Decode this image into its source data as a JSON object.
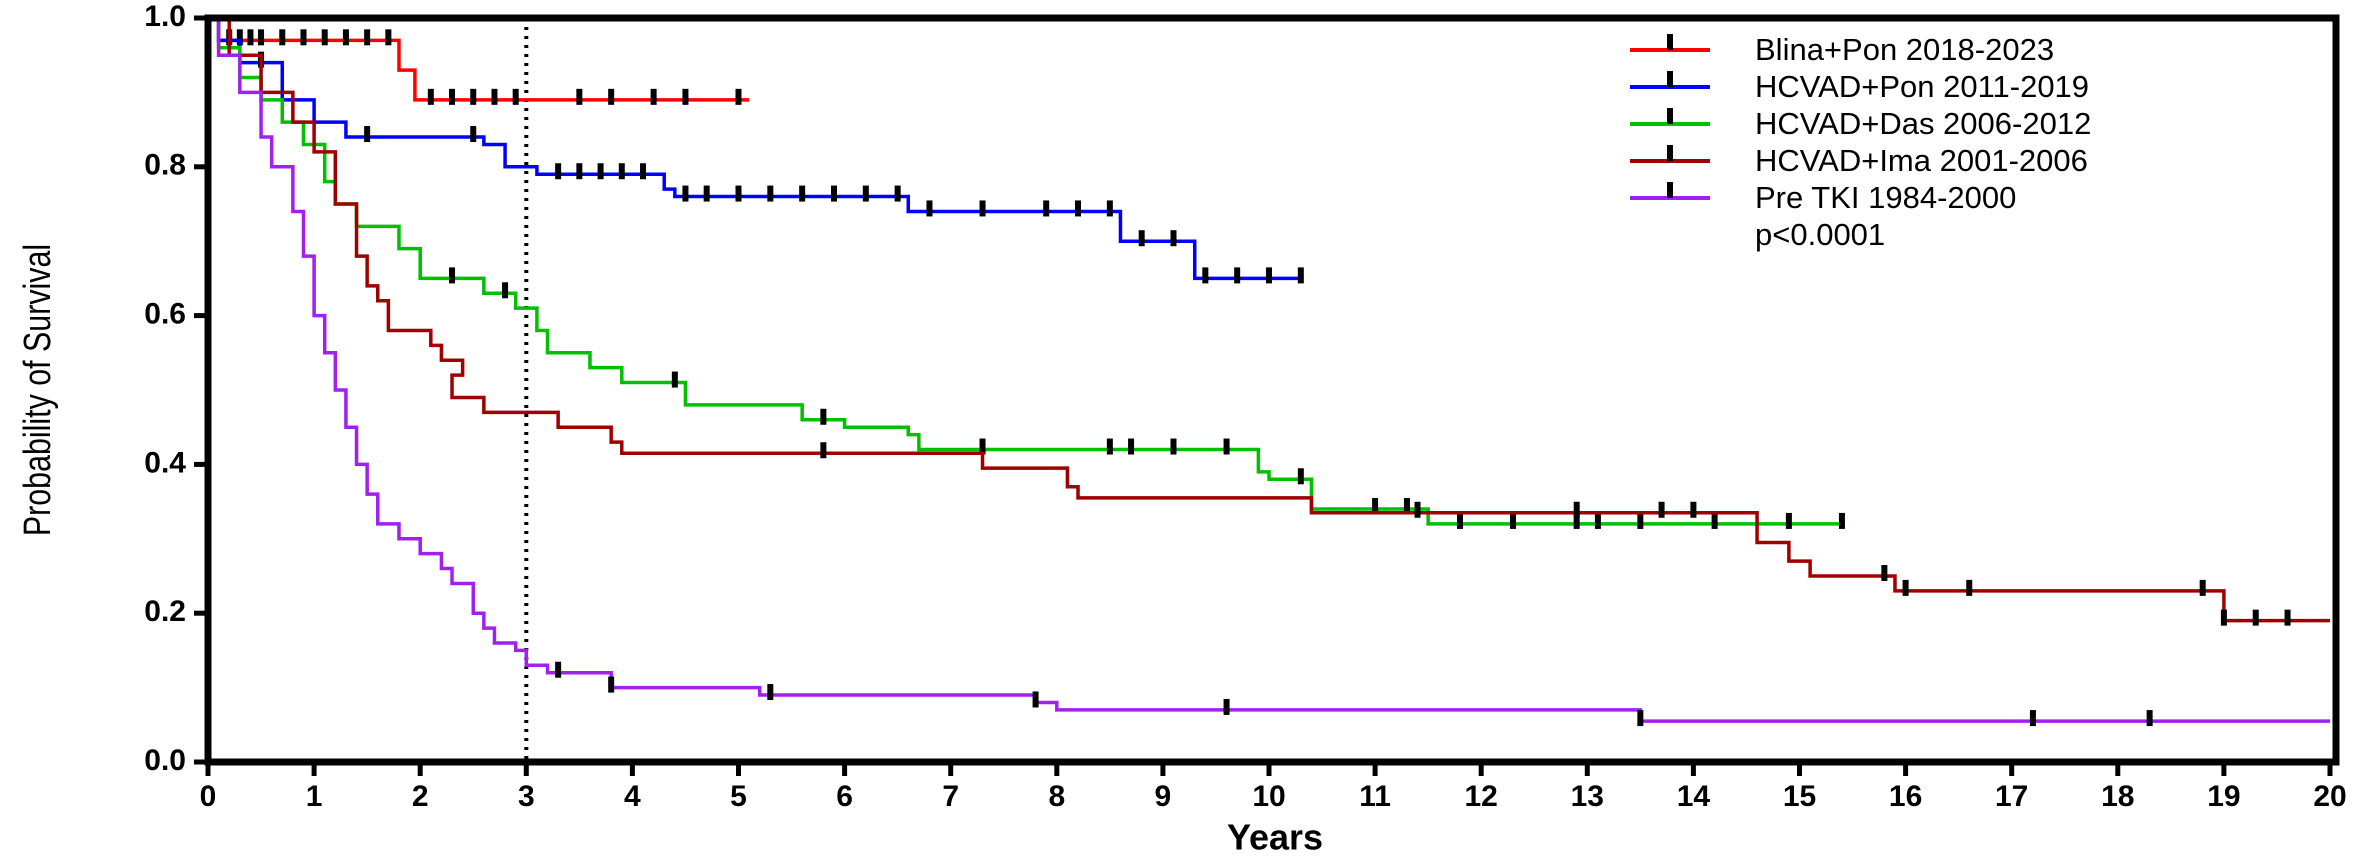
{
  "chart_data": {
    "type": "step",
    "xlabel": "Years",
    "ylabel": "Probability of Survival",
    "xlim": [
      0,
      20
    ],
    "xticks": [
      0,
      1,
      2,
      3,
      4,
      5,
      6,
      7,
      8,
      9,
      10,
      11,
      12,
      13,
      14,
      15,
      16,
      17,
      18,
      19,
      20
    ],
    "ylim": [
      0,
      1
    ],
    "yticks": [
      {
        "value": 0,
        "label": "0.0"
      },
      {
        "value": 0.2,
        "label": "0.2"
      },
      {
        "value": 0.4,
        "label": "0.4"
      },
      {
        "value": 0.6,
        "label": "0.6"
      },
      {
        "value": 0.8,
        "label": "0.8"
      },
      {
        "value": 1,
        "label": "1.0"
      }
    ],
    "vline": 3,
    "legend": "upper right",
    "annotation": "p<0.0001",
    "series": [
      {
        "name": "Blina+Pon 2018-2023",
        "color": "#ff0000",
        "x": [
          0,
          0.1,
          1.8,
          1.95,
          5.1
        ],
        "values": [
          1.0,
          0.97,
          0.93,
          0.89,
          0.89
        ],
        "censored": [
          0.2,
          0.3,
          0.4,
          0.5,
          0.7,
          0.9,
          1.1,
          1.3,
          1.5,
          1.7,
          2.1,
          2.3,
          2.5,
          2.7,
          2.9,
          3.5,
          3.8,
          4.2,
          4.5,
          5.0
        ]
      },
      {
        "name": "HCVAD+Pon 2011-2019",
        "color": "#0000ff",
        "x": [
          0,
          0.1,
          0.3,
          0.7,
          1.0,
          1.3,
          2.6,
          2.8,
          3.1,
          4.3,
          4.4,
          6.6,
          8.6,
          9.3,
          10.3
        ],
        "values": [
          1.0,
          0.97,
          0.94,
          0.89,
          0.86,
          0.84,
          0.83,
          0.8,
          0.79,
          0.77,
          0.76,
          0.74,
          0.7,
          0.65,
          0.65
        ],
        "censored": [
          0.5,
          1.5,
          2.5,
          3.3,
          3.5,
          3.7,
          3.9,
          4.1,
          4.5,
          4.7,
          5.0,
          5.3,
          5.6,
          5.9,
          6.2,
          6.5,
          6.8,
          7.3,
          7.9,
          8.2,
          8.5,
          8.8,
          9.1,
          9.4,
          9.7,
          10.0,
          10.3
        ]
      },
      {
        "name": "HCVAD+Das 2006-2012",
        "color": "#00c000",
        "x": [
          0,
          0.1,
          0.3,
          0.5,
          0.7,
          0.9,
          1.1,
          1.2,
          1.4,
          1.8,
          2.0,
          2.6,
          2.9,
          3.1,
          3.2,
          3.6,
          3.9,
          4.5,
          5.6,
          6.0,
          6.6,
          6.7,
          9.9,
          10.0,
          10.4,
          11.5,
          15.4
        ],
        "values": [
          1.0,
          0.96,
          0.92,
          0.89,
          0.86,
          0.83,
          0.78,
          0.75,
          0.72,
          0.69,
          0.65,
          0.63,
          0.61,
          0.58,
          0.55,
          0.53,
          0.51,
          0.48,
          0.46,
          0.45,
          0.44,
          0.42,
          0.39,
          0.38,
          0.34,
          0.32,
          0.32
        ],
        "censored": [
          2.3,
          2.8,
          4.4,
          5.8,
          7.3,
          8.5,
          8.7,
          9.1,
          9.6,
          10.3,
          11.0,
          11.3,
          11.8,
          12.3,
          12.9,
          13.1,
          13.5,
          14.2,
          14.9,
          15.4
        ]
      },
      {
        "name": "HCVAD+Ima 2001-2006",
        "color": "#a00000",
        "x": [
          0,
          0.2,
          0.5,
          0.8,
          1.0,
          1.2,
          1.4,
          1.5,
          1.6,
          1.7,
          2.1,
          2.2,
          2.4,
          2.3,
          2.6,
          3.3,
          3.8,
          3.9,
          7.3,
          8.1,
          8.2,
          10.4,
          14.6,
          14.9,
          15.1,
          15.9,
          19.0,
          20
        ],
        "values": [
          1.0,
          0.95,
          0.9,
          0.86,
          0.82,
          0.75,
          0.68,
          0.64,
          0.62,
          0.58,
          0.56,
          0.54,
          0.52,
          0.49,
          0.47,
          0.45,
          0.43,
          0.415,
          0.395,
          0.37,
          0.355,
          0.335,
          0.295,
          0.27,
          0.25,
          0.23,
          0.19,
          0.19
        ],
        "censored": [
          5.8,
          11.4,
          12.9,
          13.7,
          14.0,
          15.8,
          16.0,
          16.6,
          18.8,
          19.0,
          19.3,
          19.6
        ]
      },
      {
        "name": "Pre TKI 1984-2000",
        "color": "#a020f0",
        "x": [
          0,
          0.1,
          0.3,
          0.5,
          0.6,
          0.8,
          0.9,
          1.0,
          1.1,
          1.2,
          1.3,
          1.4,
          1.5,
          1.6,
          1.8,
          2.0,
          2.2,
          2.3,
          2.5,
          2.6,
          2.7,
          2.9,
          3.0,
          3.2,
          3.8,
          5.2,
          7.8,
          8.0,
          13.5,
          20
        ],
        "values": [
          1.0,
          0.95,
          0.9,
          0.84,
          0.8,
          0.74,
          0.68,
          0.6,
          0.55,
          0.5,
          0.45,
          0.4,
          0.36,
          0.32,
          0.3,
          0.28,
          0.26,
          0.24,
          0.2,
          0.18,
          0.16,
          0.15,
          0.13,
          0.12,
          0.1,
          0.09,
          0.08,
          0.07,
          0.055,
          0.055
        ],
        "censored": [
          3.3,
          3.8,
          5.3,
          7.8,
          9.6,
          13.5,
          17.2,
          18.3
        ]
      }
    ]
  }
}
